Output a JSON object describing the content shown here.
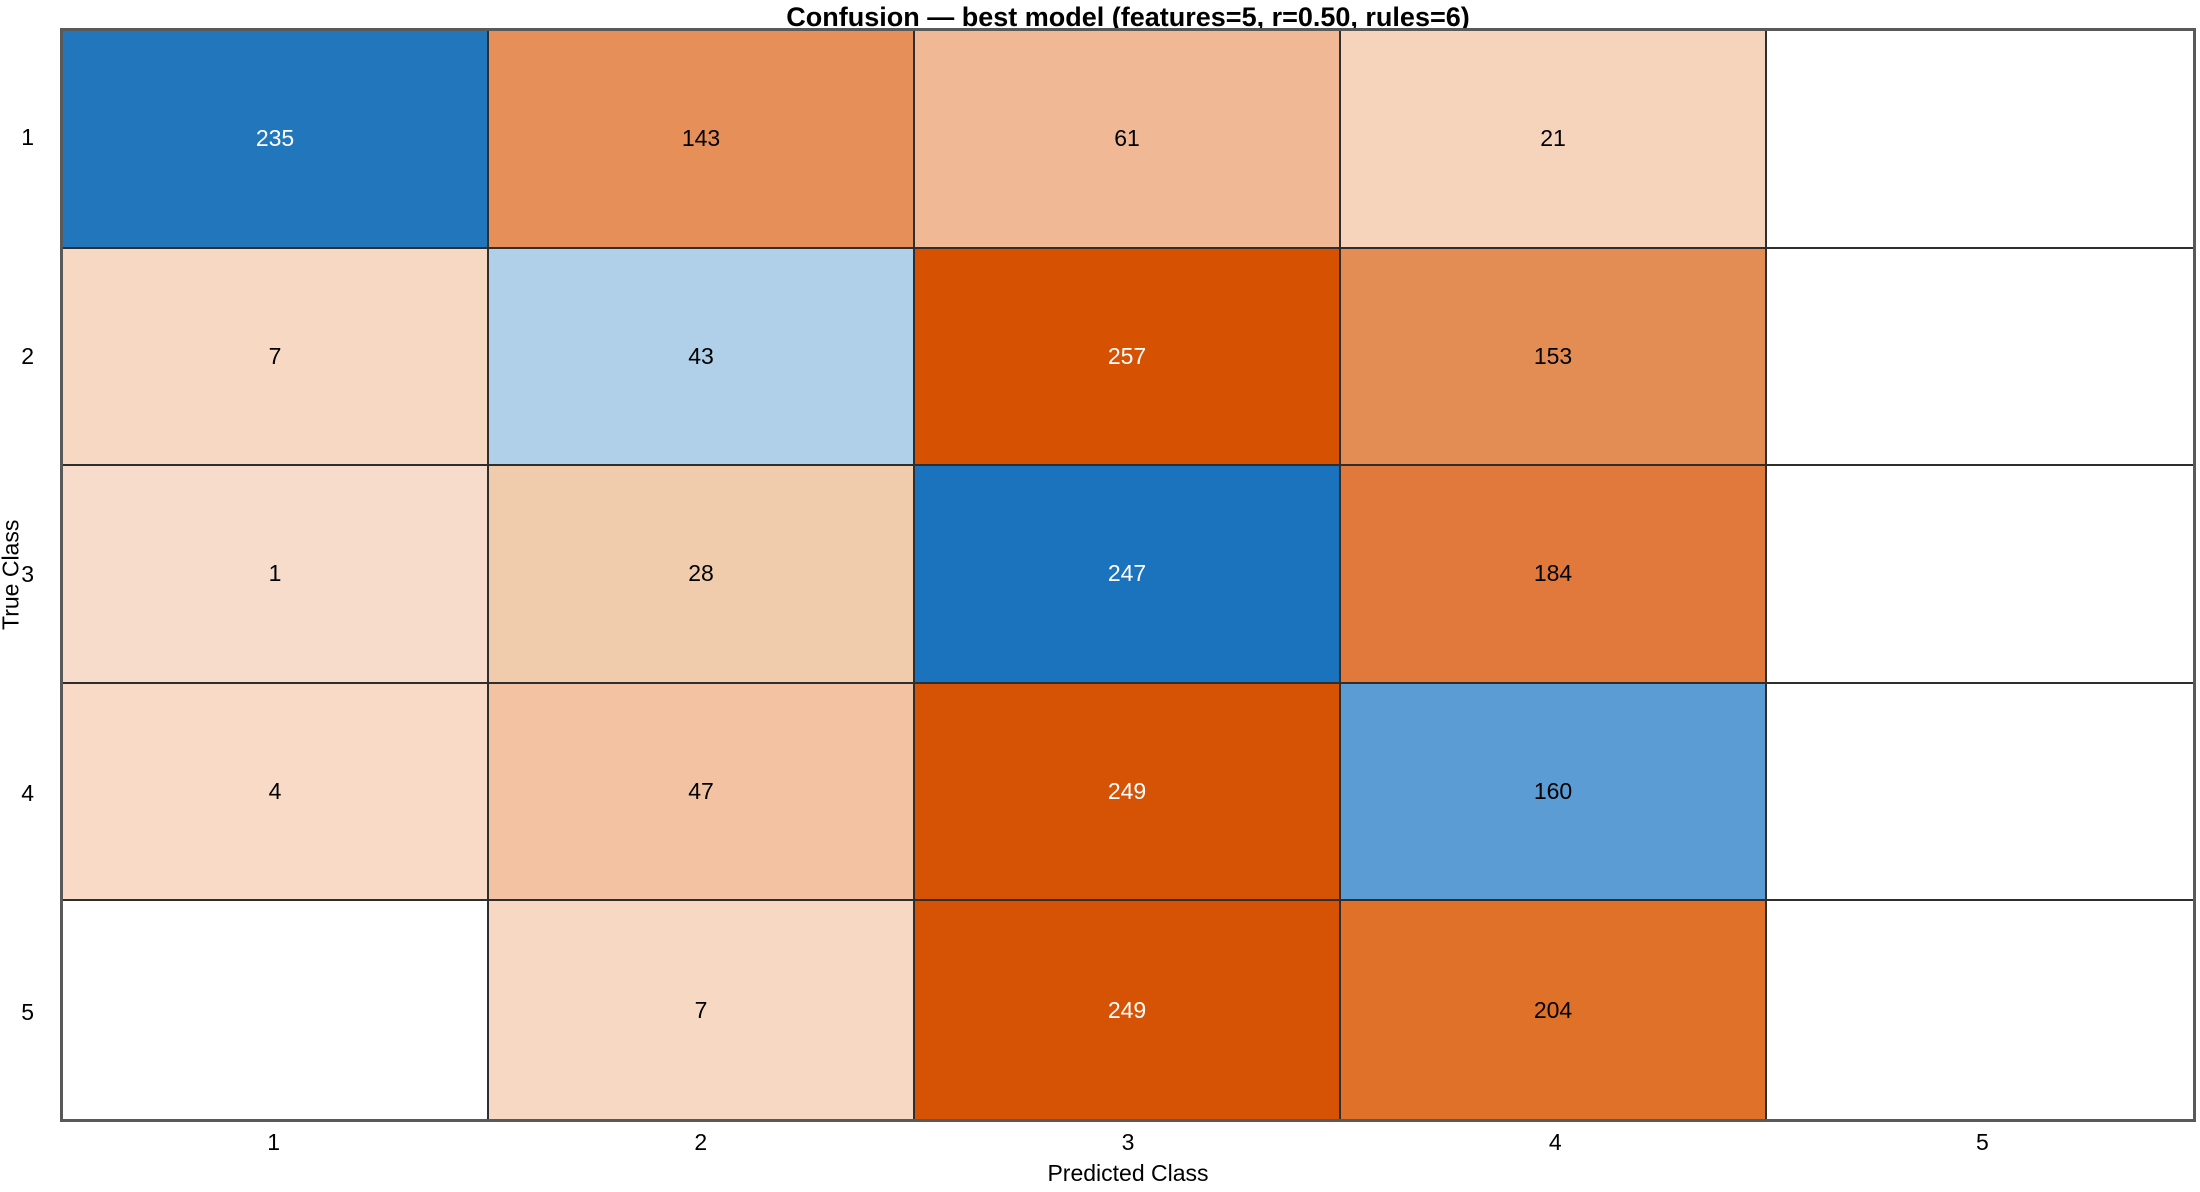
{
  "title": "Confusion — best model (features=5, r=0.50, rules=6)",
  "axes": {
    "x_label": "Predicted Class",
    "y_label": "True Class",
    "x_ticks": [
      "1",
      "2",
      "3",
      "4",
      "5"
    ],
    "y_ticks": [
      "1",
      "2",
      "3",
      "4",
      "5"
    ]
  },
  "colors": {
    "background": "#ffffff",
    "grid_line": "#2e2e2e",
    "spine": "#595959",
    "diagonal_strong_blue": "#1E75BC",
    "diagonal_medium_blue": "#5B9CD4",
    "diagonal_light_blue": "#AFD0E8",
    "offdiagonal_strong_orange": "#D65303",
    "title_color": "#000000",
    "tick_label_color": "#000000"
  },
  "chart_data": {
    "type": "heatmap",
    "title": "Confusion — best model (features=5, r=0.50, rules=6)",
    "xlabel": "Predicted Class",
    "ylabel": "True Class",
    "x_categories": [
      "1",
      "2",
      "3",
      "4",
      "5"
    ],
    "y_categories": [
      "1",
      "2",
      "3",
      "4",
      "5"
    ],
    "legend": "none",
    "grid": "cell-borders",
    "matrix": [
      [
        235,
        143,
        61,
        21,
        null
      ],
      [
        7,
        43,
        257,
        153,
        null
      ],
      [
        1,
        28,
        247,
        184,
        null
      ],
      [
        4,
        47,
        249,
        160,
        null
      ],
      [
        null,
        7,
        249,
        204,
        null
      ]
    ],
    "cell_colors": [
      [
        "#2277BC",
        "#E68F58",
        "#F1B896",
        "#F6D3BB",
        "#FFFFFF"
      ],
      [
        "#F7D8C2",
        "#AFD0E8",
        "#D75103",
        "#E38D55",
        "#FFFFFF"
      ],
      [
        "#F8DCCB",
        "#F1CCAC",
        "#1B73BD",
        "#E1793D",
        "#FFFFFF"
      ],
      [
        "#F8DAC6",
        "#F2C2A2",
        "#D65305",
        "#5B9CD4",
        "#FFFFFF"
      ],
      [
        "#FFFFFF",
        "#F7D8C2",
        "#D65305",
        "#DF7128",
        "#FFFFFF"
      ]
    ],
    "cell_text_colors": [
      [
        "#FFFFFF",
        "#000000",
        "#000000",
        "#000000",
        "#000000"
      ],
      [
        "#000000",
        "#000000",
        "#FFFFFF",
        "#000000",
        "#000000"
      ],
      [
        "#000000",
        "#000000",
        "#FFFFFF",
        "#000000",
        "#000000"
      ],
      [
        "#000000",
        "#000000",
        "#FFFFFF",
        "#000000",
        "#000000"
      ],
      [
        "#000000",
        "#000000",
        "#FFFFFF",
        "#000000",
        "#000000"
      ]
    ]
  }
}
